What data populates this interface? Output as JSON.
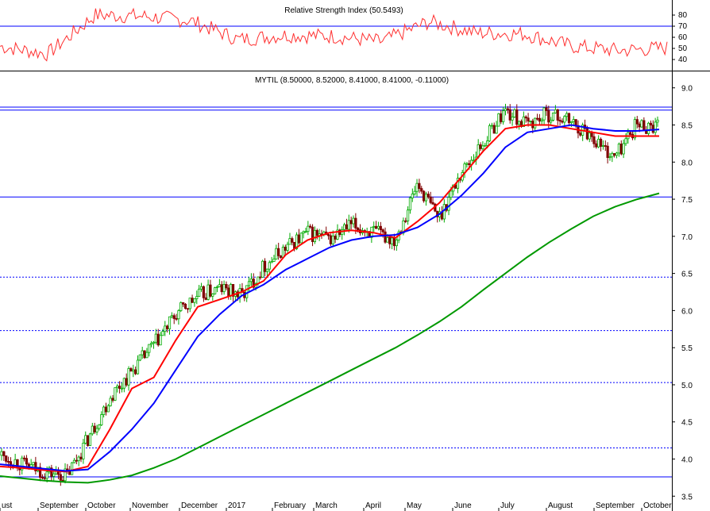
{
  "chart_data": [
    {
      "type": "line",
      "title": "Relative Strength Index (50.5493)",
      "current_value": 50.5493,
      "ylim": [
        30,
        90
      ],
      "yticks": [
        "80",
        "70",
        "60",
        "50",
        "40"
      ],
      "ytick_values": [
        80,
        70,
        60,
        50,
        40
      ],
      "reference_lines": [
        70
      ],
      "series": [
        {
          "color": "#ff3030",
          "x": [
            "Aug 2016",
            "Sep 2016",
            "Oct 2016",
            "Nov 2016",
            "Dec 2016",
            "Jan 2017",
            "Feb 2017",
            "Mar 2017",
            "Apr 2017",
            "May 2017",
            "Jun 2017",
            "Jul 2017",
            "Aug 2017",
            "Sep 2017",
            "Oct 2017"
          ],
          "values": [
            52,
            45,
            80,
            79,
            75,
            58,
            62,
            61,
            56,
            74,
            64,
            63,
            52,
            48,
            50.5
          ]
        }
      ]
    },
    {
      "type": "candlestick",
      "title": "MYTIL (8.50000, 8.52000, 8.41000, 8.41000, -0.11000)",
      "ylim": [
        3.3,
        9.2
      ],
      "yticks": [
        "9.0",
        "8.5",
        "8.0",
        "7.5",
        "7.0",
        "6.5",
        "6.0",
        "5.5",
        "5.0",
        "4.5",
        "4.0",
        "3.5"
      ],
      "ytick_values": [
        9.0,
        8.5,
        8.0,
        7.5,
        7.0,
        6.5,
        6.0,
        5.5,
        5.0,
        4.5,
        4.0,
        3.5
      ],
      "xticks": [
        "ust",
        "September",
        "October",
        "November",
        "December",
        "2017",
        "February",
        "March",
        "April",
        "May",
        "June",
        "July",
        "August",
        "September",
        "October"
      ],
      "horizontal_lines": [
        {
          "value": 8.74,
          "style": "solid",
          "color": "#0000ff"
        },
        {
          "value": 8.7,
          "style": "solid",
          "color": "#0000ff"
        },
        {
          "value": 7.53,
          "style": "solid",
          "color": "#0000ff"
        },
        {
          "value": 6.45,
          "style": "dotted",
          "color": "#0000ff"
        },
        {
          "value": 5.73,
          "style": "dotted",
          "color": "#0000ff"
        },
        {
          "value": 5.03,
          "style": "dotted",
          "color": "#0000ff"
        },
        {
          "value": 4.15,
          "style": "dotted",
          "color": "#0000ff"
        },
        {
          "value": 3.76,
          "style": "solid",
          "color": "#0000ff"
        }
      ],
      "price_path": [
        {
          "x": "Aug 2016",
          "v": 4.05
        },
        {
          "x": "Aug 2016b",
          "v": 3.92
        },
        {
          "x": "Sep 2016",
          "v": 3.82
        },
        {
          "x": "Sep 2016b",
          "v": 3.78
        },
        {
          "x": "Oct 2016",
          "v": 4.3
        },
        {
          "x": "Oct 2016b",
          "v": 4.85
        },
        {
          "x": "Nov 2016",
          "v": 5.2
        },
        {
          "x": "Nov 2016b",
          "v": 5.55
        },
        {
          "x": "Dec 2016",
          "v": 5.95
        },
        {
          "x": "Dec 2016b",
          "v": 6.2
        },
        {
          "x": "Jan 2017",
          "v": 6.3
        },
        {
          "x": "Jan 2017b",
          "v": 6.2
        },
        {
          "x": "Feb 2017",
          "v": 6.6
        },
        {
          "x": "Feb 2017b",
          "v": 6.85
        },
        {
          "x": "Mar 2017",
          "v": 7.05
        },
        {
          "x": "Mar 2017b",
          "v": 6.95
        },
        {
          "x": "Apr 2017",
          "v": 7.15
        },
        {
          "x": "Apr 2017b",
          "v": 7.05
        },
        {
          "x": "May 2017",
          "v": 6.95
        },
        {
          "x": "May 2017b",
          "v": 7.7
        },
        {
          "x": "May 2017c",
          "v": 7.25
        },
        {
          "x": "Jun 2017",
          "v": 7.85
        },
        {
          "x": "Jun 2017b",
          "v": 8.25
        },
        {
          "x": "Jul 2017",
          "v": 8.7
        },
        {
          "x": "Jul 2017b",
          "v": 8.5
        },
        {
          "x": "Aug 2017",
          "v": 8.65
        },
        {
          "x": "Aug 2017b",
          "v": 8.55
        },
        {
          "x": "Sep 2017",
          "v": 8.35
        },
        {
          "x": "Sep 2017b",
          "v": 8.05
        },
        {
          "x": "Oct 2017",
          "v": 8.5
        },
        {
          "x": "Oct 2017b",
          "v": 8.48
        }
      ],
      "series": [
        {
          "color": "#ff0000",
          "values": [
            3.9,
            3.88,
            3.85,
            3.83,
            3.9,
            4.4,
            4.95,
            5.1,
            5.6,
            6.05,
            6.15,
            6.25,
            6.4,
            6.75,
            6.95,
            7.05,
            7.08,
            7.05,
            6.98,
            7.2,
            7.45,
            7.8,
            8.15,
            8.45,
            8.5,
            8.5,
            8.45,
            8.4,
            8.35,
            8.35,
            8.35
          ]
        },
        {
          "color": "#0000ff",
          "values": [
            3.93,
            3.9,
            3.87,
            3.84,
            3.86,
            4.1,
            4.4,
            4.75,
            5.2,
            5.65,
            5.95,
            6.2,
            6.35,
            6.55,
            6.7,
            6.85,
            6.95,
            7.0,
            7.02,
            7.12,
            7.3,
            7.55,
            7.85,
            8.2,
            8.4,
            8.45,
            8.5,
            8.45,
            8.42,
            8.42,
            8.44
          ]
        },
        {
          "color": "#009900",
          "values": [
            3.77,
            3.74,
            3.71,
            3.69,
            3.68,
            3.72,
            3.78,
            3.88,
            4.0,
            4.15,
            4.3,
            4.45,
            4.6,
            4.75,
            4.9,
            5.05,
            5.2,
            5.35,
            5.5,
            5.67,
            5.85,
            6.05,
            6.28,
            6.5,
            6.72,
            6.92,
            7.1,
            7.27,
            7.4,
            7.5,
            7.58
          ]
        }
      ]
    }
  ]
}
